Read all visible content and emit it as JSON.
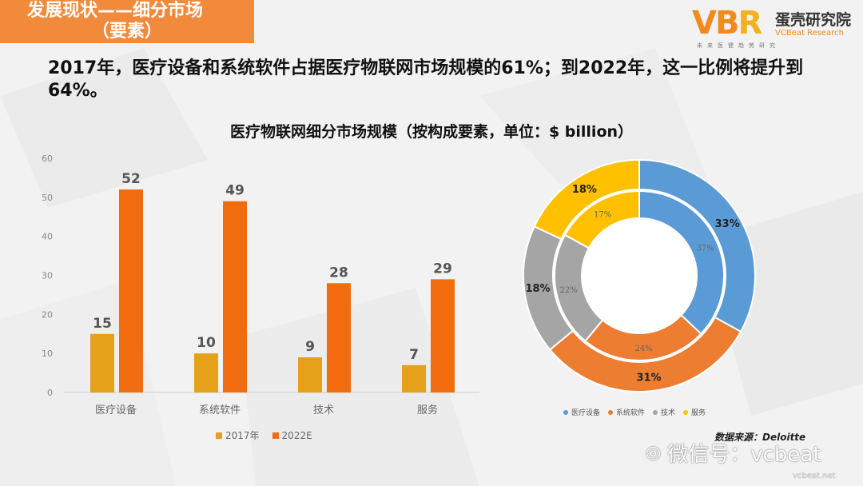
{
  "header": {
    "line1": "发展现状——细分市场",
    "line2": "（要素）"
  },
  "logo": {
    "mark": "VBR",
    "name_cn": "蛋壳研究院",
    "name_en": "VCBeat Research",
    "tagline": "未来医健趋势研究"
  },
  "headline": "2017年，医疗设备和系统软件占据医疗物联网市场规模的61%；到2022年，这一比例将提升到64%。",
  "chart_title": "医疗物联网细分市场规模（按构成要素，单位：$ billion）",
  "colors": {
    "c2017": "#e6a11b",
    "c2022": "#f26b0f",
    "d1": "#5b9bd5",
    "d2": "#ed7d31",
    "d3": "#a5a5a5",
    "d4": "#ffc000"
  },
  "chart_data": [
    {
      "type": "bar",
      "categories": [
        "医疗设备",
        "系统软件",
        "技术",
        "服务"
      ],
      "series": [
        {
          "name": "2017年",
          "values": [
            15,
            10,
            9,
            7
          ]
        },
        {
          "name": "2022E",
          "values": [
            52,
            49,
            28,
            29
          ]
        }
      ],
      "ylim": [
        0,
        60
      ],
      "yticks": [
        0,
        10,
        20,
        30,
        40,
        50,
        60
      ],
      "grid": false,
      "legend": "bottom"
    },
    {
      "type": "pie",
      "categories": [
        "医疗设备",
        "系统软件",
        "技术",
        "服务"
      ],
      "outer_series": {
        "values": [
          33,
          31,
          18,
          18
        ],
        "labels": [
          "33%",
          "31%",
          "18%",
          "18%"
        ]
      },
      "inner_series": {
        "values": [
          37,
          24,
          22,
          17
        ],
        "labels": [
          "37%",
          "24%",
          "22%",
          "17%"
        ]
      },
      "legend": "bottom"
    }
  ],
  "source": "数据来源：Deloitte",
  "watermark": {
    "text": "微信号：vcbeat",
    "sub": "vcbeat.net"
  }
}
